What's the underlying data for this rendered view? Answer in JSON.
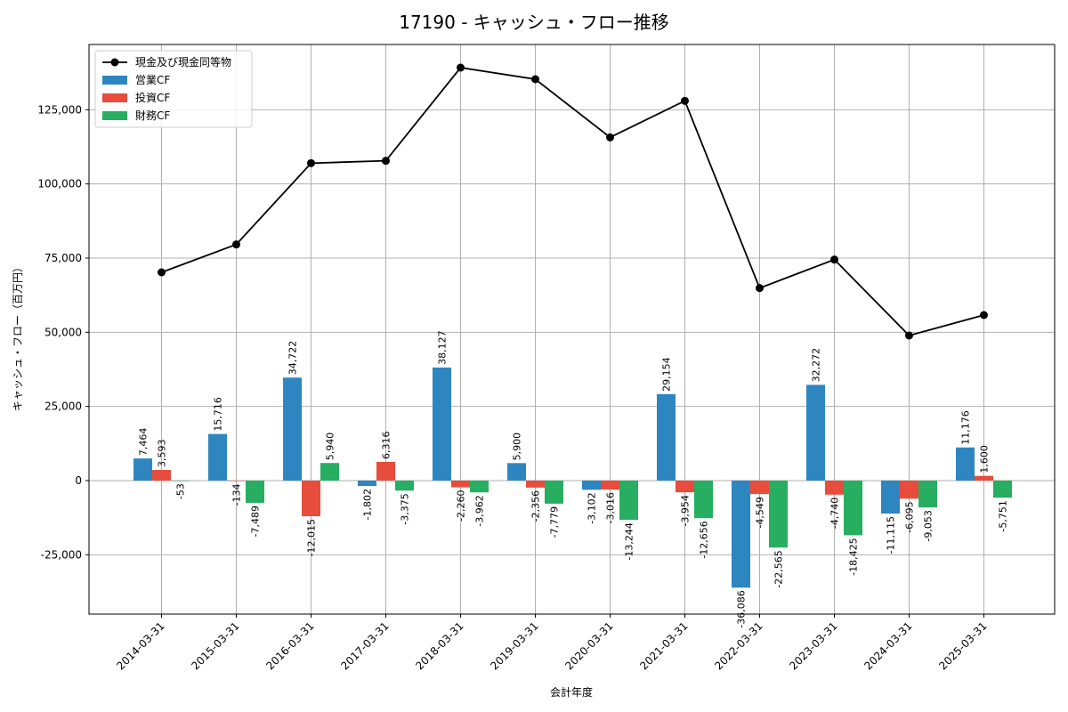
{
  "chart_data": {
    "type": "bar",
    "title": "17190 - キャッシュ・フロー推移",
    "xlabel": "会計年度",
    "ylabel": "キャッシュ・フロー（百万円）",
    "categories": [
      "2014-03-31",
      "2015-03-31",
      "2016-03-31",
      "2017-03-31",
      "2018-03-31",
      "2019-03-31",
      "2020-03-31",
      "2021-03-31",
      "2022-03-31",
      "2023-03-31",
      "2024-03-31",
      "2025-03-31"
    ],
    "ylim": [
      -45000,
      147000
    ],
    "yticks": [
      -25000,
      0,
      25000,
      50000,
      75000,
      100000,
      125000
    ],
    "ytick_labels": [
      "-25,000",
      "0",
      "25,000",
      "50,000",
      "75,000",
      "100,000",
      "125,000"
    ],
    "grid": true,
    "legend_position": "top-left",
    "series": [
      {
        "name": "営業CF",
        "kind": "bar",
        "color": "#2e86c1",
        "values": [
          7464,
          15716,
          34722,
          -1802,
          38127,
          5900,
          -3102,
          29154,
          -36086,
          32272,
          -11115,
          11176
        ],
        "labels": [
          "7,464",
          "15,716",
          "34,722",
          "-1,802",
          "38,127",
          "5,900",
          "-3,102",
          "29,154",
          "-36,086",
          "32,272",
          "-11,115",
          "11,176"
        ]
      },
      {
        "name": "投資CF",
        "kind": "bar",
        "color": "#e74c3c",
        "values": [
          3593,
          -134,
          -12015,
          6316,
          -2260,
          -2356,
          -3016,
          -3954,
          -4549,
          -4740,
          -6095,
          1600
        ],
        "labels": [
          "3,593",
          "-134",
          "-12,015",
          "6,316",
          "-2,260",
          "-2,356",
          "-3,016",
          "-3,954",
          "-4,549",
          "-4,740",
          "-6,095",
          "1,600"
        ]
      },
      {
        "name": "財務CF",
        "kind": "bar",
        "color": "#27ae60",
        "values": [
          -53,
          -7489,
          5940,
          -3375,
          -3962,
          -7779,
          -13244,
          -12656,
          -22565,
          -18425,
          -9053,
          -5751
        ],
        "labels": [
          "-53",
          "-7,489",
          "5,940",
          "-3,375",
          "-3,962",
          "-7,779",
          "-13,244",
          "-12,656",
          "-22,565",
          "-18,425",
          "-9,053",
          "-5,751"
        ]
      },
      {
        "name": "現金及び現金同等物",
        "kind": "line",
        "color": "#000000",
        "values": [
          70200,
          79600,
          107000,
          107800,
          139200,
          135300,
          115700,
          128000,
          64900,
          74500,
          48900,
          55800
        ]
      }
    ]
  }
}
